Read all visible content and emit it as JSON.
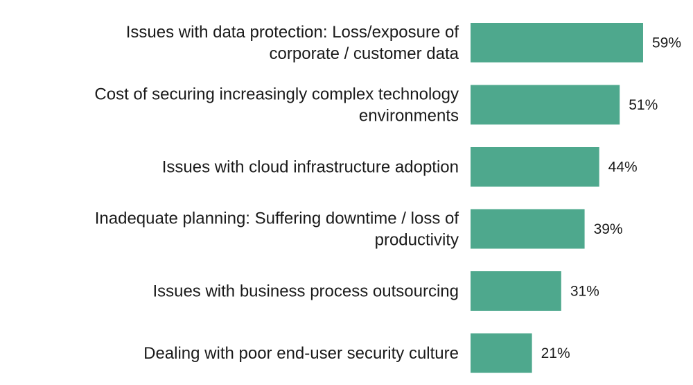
{
  "chart_data": {
    "type": "bar",
    "orientation": "horizontal",
    "categories": [
      [
        "Issues with data protection: Loss/exposure of",
        "corporate / customer data"
      ],
      [
        "Cost of securing increasingly complex technology",
        "environments"
      ],
      [
        "Issues with cloud infrastructure adoption"
      ],
      [
        "Inadequate planning: Suffering downtime / loss of",
        "productivity"
      ],
      [
        "Issues with business process outsourcing"
      ],
      [
        "Dealing with poor end-user security culture"
      ]
    ],
    "values": [
      59,
      51,
      44,
      39,
      31,
      21
    ],
    "value_labels": [
      "59%",
      "51%",
      "44%",
      "39%",
      "31%",
      "21%"
    ],
    "unit": "%",
    "xlim": [
      0,
      100
    ],
    "grid": false,
    "legend": "none",
    "bar_color": "#4ea88d"
  }
}
